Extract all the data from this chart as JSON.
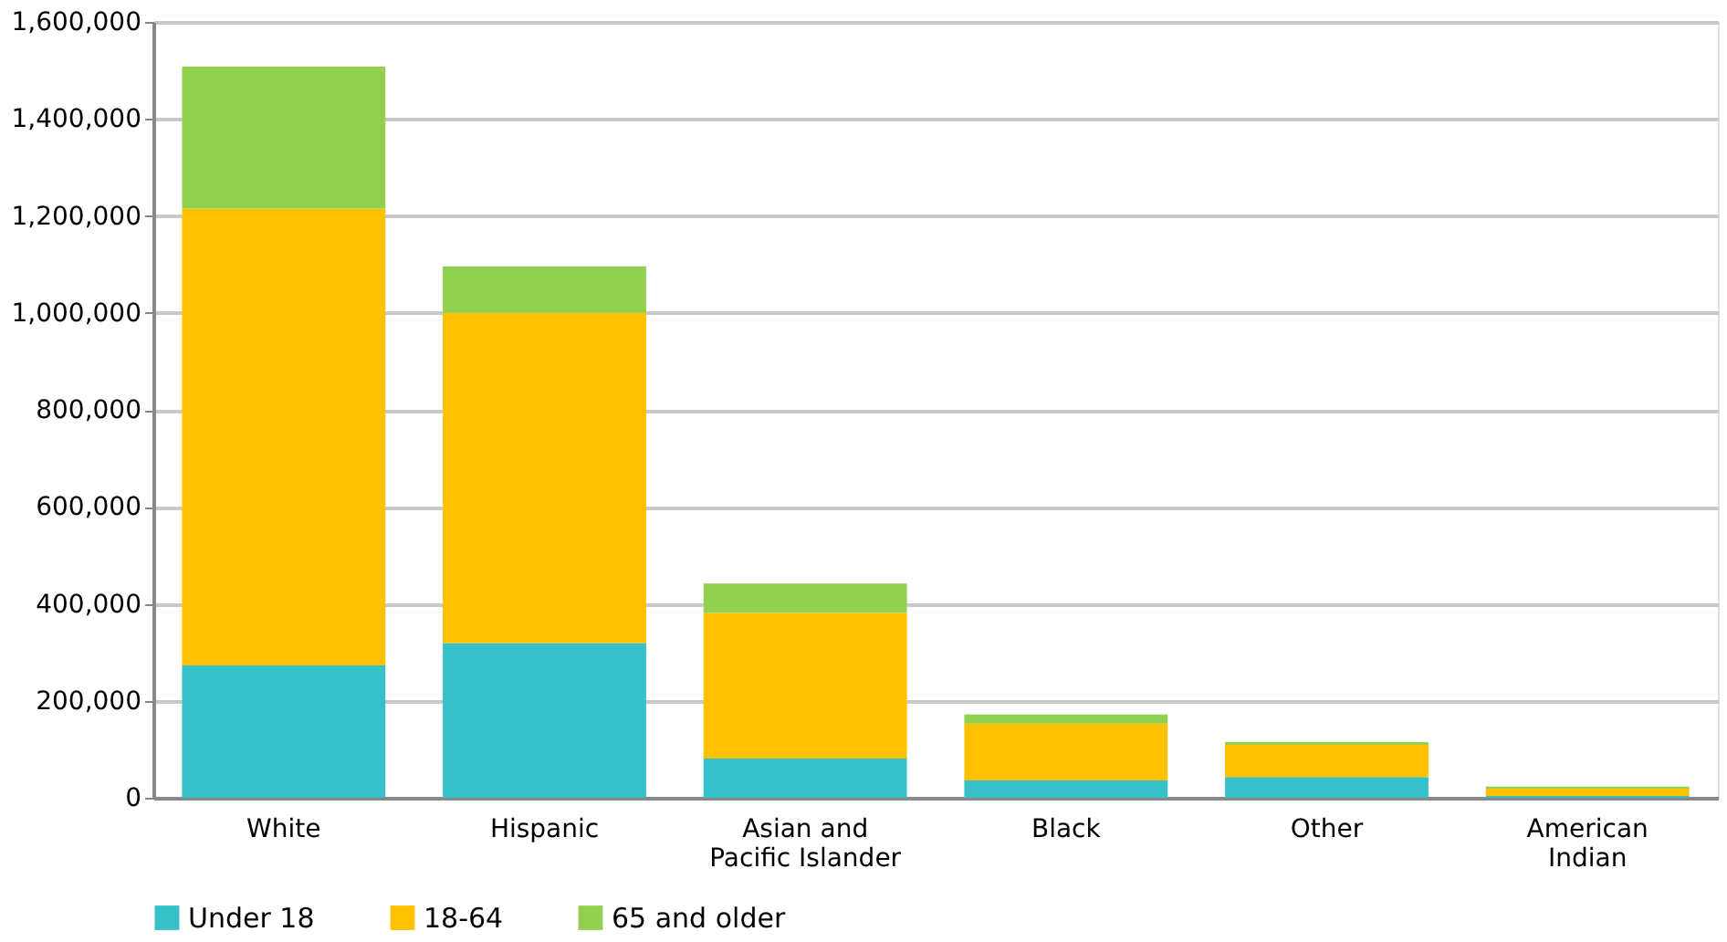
{
  "chart_data": {
    "type": "bar",
    "stacked": true,
    "categories": [
      "White",
      "Hispanic",
      "Asian and Pacific Islander",
      "Black",
      "Other",
      "American Indian"
    ],
    "series": [
      {
        "name": "Under 18",
        "color": "#36c0c8",
        "values": [
          273000,
          319000,
          81000,
          36000,
          43000,
          4000
        ]
      },
      {
        "name": "18-64",
        "color": "#ffc000",
        "values": [
          942000,
          681000,
          300000,
          117000,
          66000,
          15000
        ]
      },
      {
        "name": "65 and older",
        "color": "#92d050",
        "values": [
          293000,
          96000,
          61000,
          19000,
          6000,
          4000
        ]
      }
    ],
    "ylim": [
      0,
      1600000
    ],
    "yticks": [
      0,
      {
        "value": 200000,
        "label": "200,000"
      },
      {
        "value": 400000,
        "label": "400,000"
      },
      {
        "value": 600000,
        "label": "600,000"
      },
      {
        "value": 800000,
        "label": "800,000"
      },
      {
        "value": 1000000,
        "label": "1,000,000"
      },
      {
        "value": 1200000,
        "label": "1,200,000"
      },
      {
        "value": 1400000,
        "label": "1,400,000"
      },
      {
        "value": 1600000,
        "label": "1,600,000"
      }
    ],
    "grid": "y",
    "legend": "bottom"
  }
}
